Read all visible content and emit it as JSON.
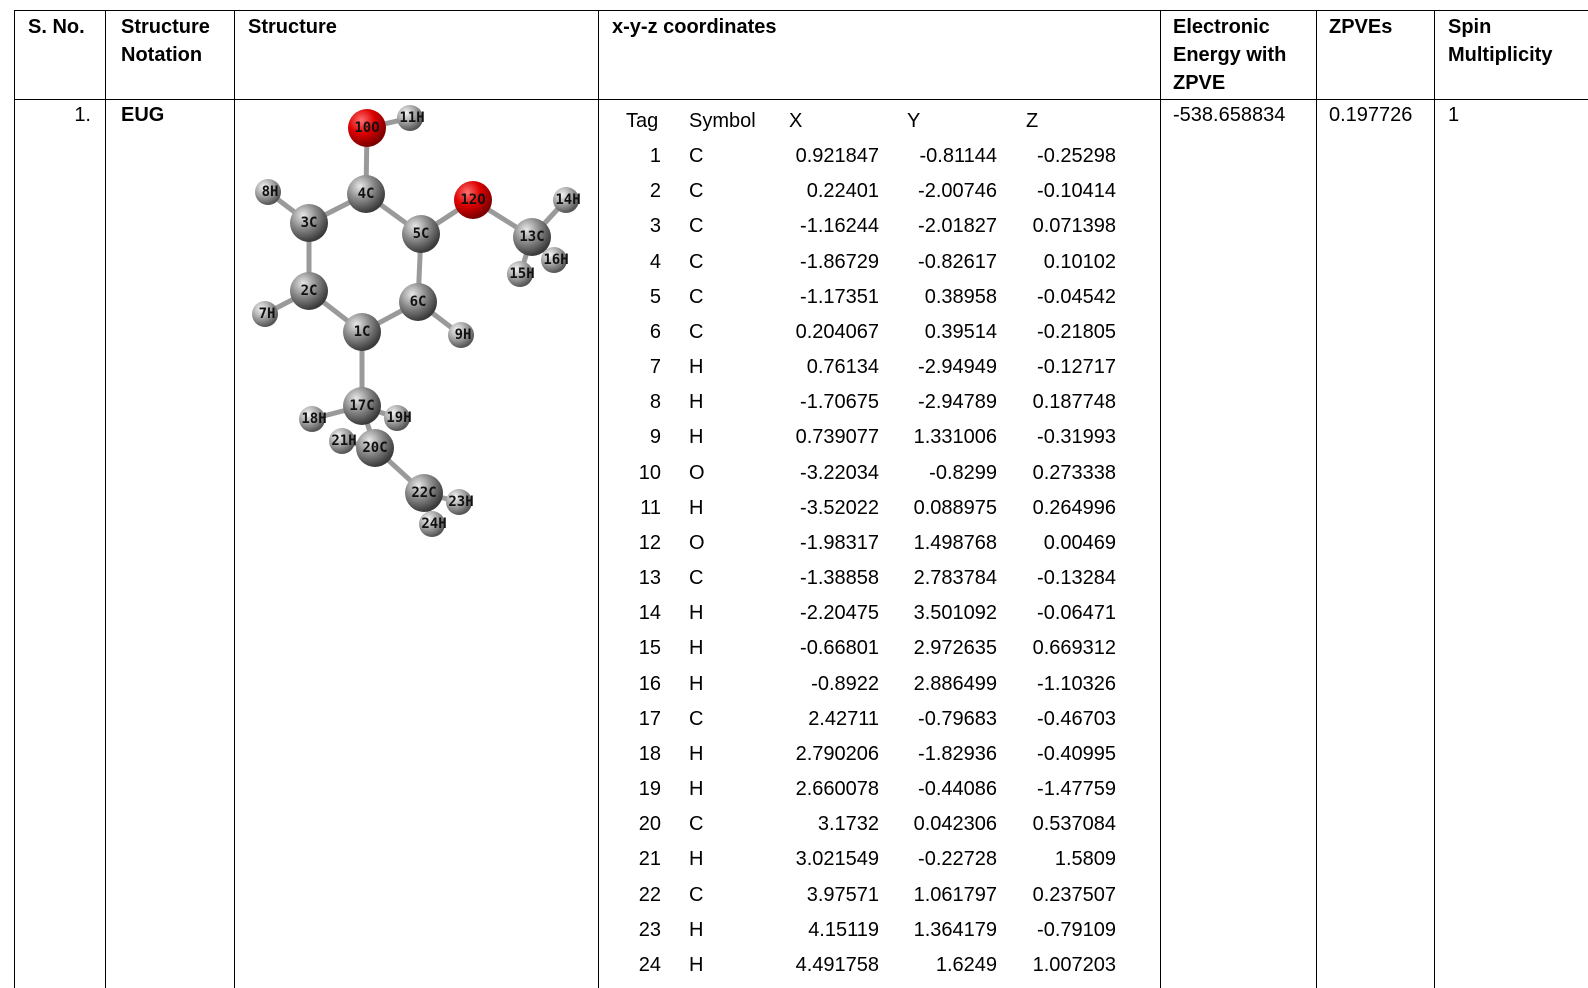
{
  "table": {
    "headers": [
      "S. No.",
      "Structure Notation",
      "Structure",
      "x-y-z coordinates",
      "Electronic Energy with ZPVE",
      "ZPVEs",
      "Spin Multiplicity"
    ],
    "rows": [
      [
        "1.",
        "EUG",
        "-538.658834",
        "0.197726",
        "1"
      ]
    ]
  },
  "coordinates": {
    "headers": [
      "Tag",
      "Symbol",
      "X",
      "Y",
      "Z"
    ],
    "rows": [
      [
        "1",
        "C",
        "0.921847",
        "-0.81144",
        "-0.25298"
      ],
      [
        "2",
        "C",
        "0.22401",
        "-2.00746",
        "-0.10414"
      ],
      [
        "3",
        "C",
        "-1.16244",
        "-2.01827",
        "0.071398"
      ],
      [
        "4",
        "C",
        "-1.86729",
        "-0.82617",
        "0.10102"
      ],
      [
        "5",
        "C",
        "-1.17351",
        "0.38958",
        "-0.04542"
      ],
      [
        "6",
        "C",
        "0.204067",
        "0.39514",
        "-0.21805"
      ],
      [
        "7",
        "H",
        "0.76134",
        "-2.94949",
        "-0.12717"
      ],
      [
        "8",
        "H",
        "-1.70675",
        "-2.94789",
        "0.187748"
      ],
      [
        "9",
        "H",
        "0.739077",
        "1.331006",
        "-0.31993"
      ],
      [
        "10",
        "O",
        "-3.22034",
        "-0.8299",
        "0.273338"
      ],
      [
        "11",
        "H",
        "-3.52022",
        "0.088975",
        "0.264996"
      ],
      [
        "12",
        "O",
        "-1.98317",
        "1.498768",
        "0.00469"
      ],
      [
        "13",
        "C",
        "-1.38858",
        "2.783784",
        "-0.13284"
      ],
      [
        "14",
        "H",
        "-2.20475",
        "3.501092",
        "-0.06471"
      ],
      [
        "15",
        "H",
        "-0.66801",
        "2.972635",
        "0.669312"
      ],
      [
        "16",
        "H",
        "-0.8922",
        "2.886499",
        "-1.10326"
      ],
      [
        "17",
        "C",
        "2.42711",
        "-0.79683",
        "-0.46703"
      ],
      [
        "18",
        "H",
        "2.790206",
        "-1.82936",
        "-0.40995"
      ],
      [
        "19",
        "H",
        "2.660078",
        "-0.44086",
        "-1.47759"
      ],
      [
        "20",
        "C",
        "3.1732",
        "0.042306",
        "0.537084"
      ],
      [
        "21",
        "H",
        "3.021549",
        "-0.22728",
        "1.5809"
      ],
      [
        "22",
        "C",
        "3.97571",
        "1.061797",
        "0.237507"
      ],
      [
        "23",
        "H",
        "4.15119",
        "1.364179",
        "-0.79109"
      ],
      [
        "24",
        "H",
        "4.491758",
        "1.6249",
        "1.007203"
      ]
    ]
  },
  "structure": {
    "atoms": [
      "1C",
      "2C",
      "3C",
      "4C",
      "5C",
      "6C",
      "7H",
      "8H",
      "9H",
      "10O",
      "11H",
      "12O",
      "13C",
      "14H",
      "15H",
      "16H",
      "17C",
      "18H",
      "19H",
      "20C",
      "21H",
      "22C",
      "23H",
      "24H"
    ]
  }
}
